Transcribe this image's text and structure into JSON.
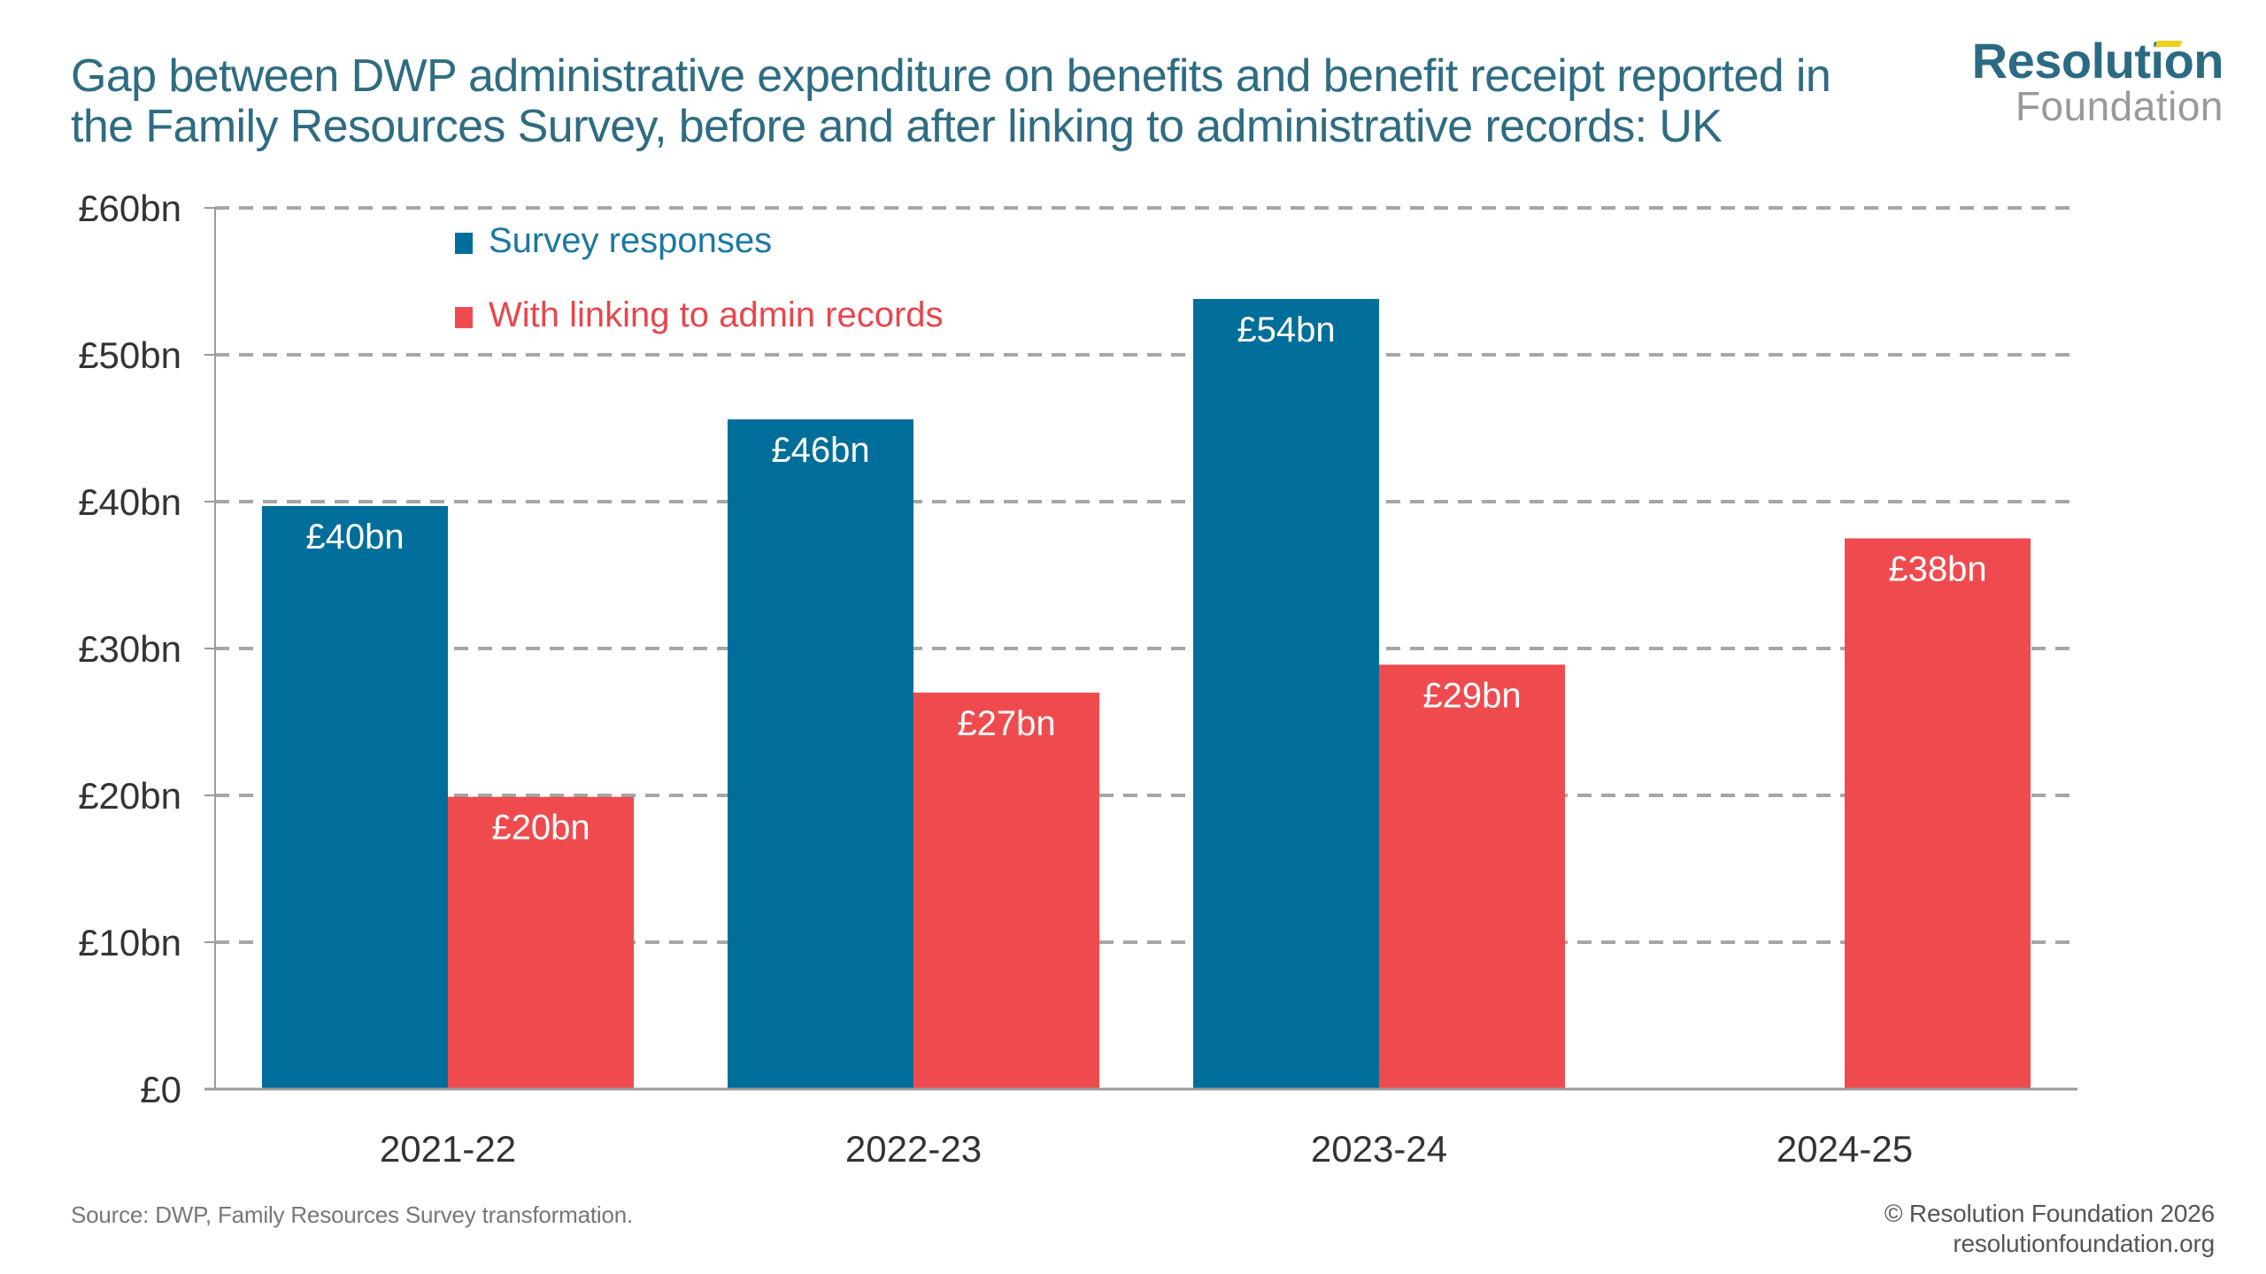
{
  "title": {
    "line1": "Gap between DWP administrative expenditure on benefits and benefit receipt reported in",
    "line2": "the Family Resources Survey, before and after linking to administrative records: UK"
  },
  "logo": {
    "top": "Resolution",
    "bottom": "Foundation",
    "colors": {
      "primary": "#2b6a83",
      "secondary": "#999999",
      "accent": "#f2cf1b"
    }
  },
  "footer": {
    "source": "Source: DWP, Family Resources Survey transformation.",
    "copyright": "© Resolution Foundation 2026",
    "website": "resolutionfoundation.org"
  },
  "chart_data": {
    "type": "bar",
    "title": "Gap between DWP administrative expenditure on benefits and benefit receipt reported in the Family Resources Survey, before and after linking to administrative records: UK",
    "xlabel": "",
    "ylabel": "",
    "categories": [
      "2021-22",
      "2022-23",
      "2023-24",
      "2024-25"
    ],
    "series": [
      {
        "name": "Survey responses",
        "color": "#006e9a",
        "values": [
          39.7,
          45.6,
          53.8,
          null
        ],
        "labels": [
          "£40bn",
          "£46bn",
          "£54bn",
          null
        ]
      },
      {
        "name": "With linking to admin records",
        "color": "#ef4b4f",
        "values": [
          19.9,
          27.0,
          28.9,
          37.5
        ],
        "labels": [
          "£20bn",
          "£27bn",
          "£29bn",
          "£38bn"
        ]
      }
    ],
    "ylim": [
      0,
      60
    ],
    "yticks": [
      0,
      10,
      20,
      30,
      40,
      50,
      60
    ],
    "ytick_labels": [
      "£0",
      "£10bn",
      "£20bn",
      "£30bn",
      "£40bn",
      "£50bn",
      "£60bn"
    ],
    "grid": true,
    "grid_style": "dashed",
    "legend_position": "top-left",
    "data_label_position": "inside-top",
    "legend_colors": {
      "text_survey": "#1c78a0",
      "text_linking": "#e8464c"
    }
  }
}
